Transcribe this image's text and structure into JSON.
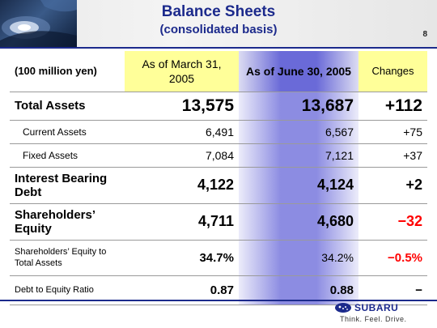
{
  "header": {
    "title": "Balance Sheets",
    "subtitle": "(consolidated basis)",
    "page_number": "8"
  },
  "table": {
    "unit_label": "(100 million yen)",
    "col_march": "As of March 31, 2005",
    "col_june": "As of June 30, 2005",
    "col_changes": "Changes",
    "rows": [
      {
        "label": "Total Assets",
        "march": "13,575",
        "june": "13,687",
        "change": "+112"
      },
      {
        "label": "Current Assets",
        "march": "6,491",
        "june": "6,567",
        "change": "+75"
      },
      {
        "label": "Fixed Assets",
        "march": "7,084",
        "june": "7,121",
        "change": "+37"
      },
      {
        "label": "Interest Bearing Debt",
        "march": "4,122",
        "june": "4,124",
        "change": "+2"
      },
      {
        "label": "Shareholders’ Equity",
        "march": "4,711",
        "june": "4,680",
        "change": "−32"
      },
      {
        "label": "Shareholders’ Equity to Total Assets",
        "march": "34.7%",
        "june": "34.2%",
        "change": "−0.5%"
      },
      {
        "label": "Debt to Equity Ratio",
        "march": "0.87",
        "june": "0.88",
        "change": "−"
      }
    ]
  },
  "footer": {
    "brand": "SUBARU",
    "tagline": "Think. Feel. Drive."
  },
  "colors": {
    "title": "#1c2a8c",
    "header_highlight": "#ffff99",
    "june_column": "#8c8ce2",
    "negative": "#ff0000"
  }
}
